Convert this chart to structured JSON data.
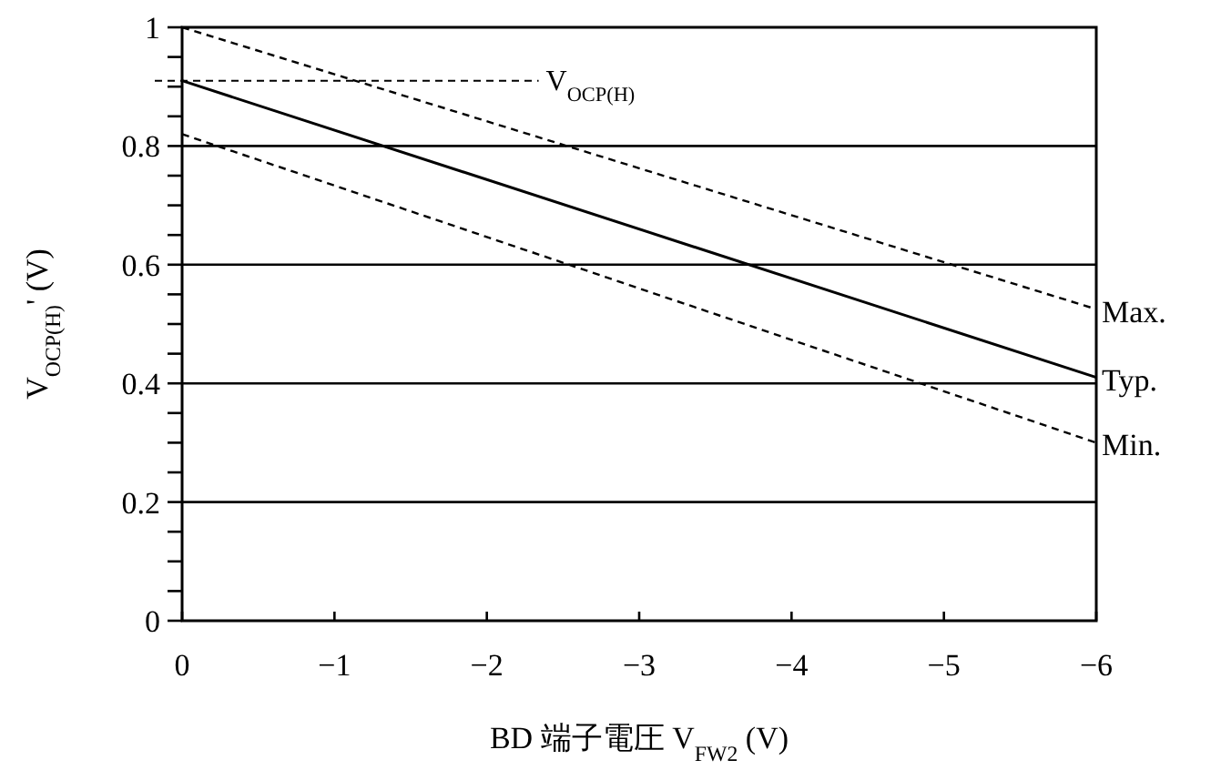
{
  "chart_data": {
    "type": "line",
    "xlabel": "BD 端子電圧  V$_{FW2}$ (V)",
    "ylabel": "V$_{OCP(H)}$' (V)",
    "x": [
      0,
      -6
    ],
    "series": [
      {
        "name": "Max.",
        "color": "#000000",
        "line_style": "dashed",
        "values": [
          1.0,
          0.525
        ]
      },
      {
        "name": "Typ.",
        "color": "#000000",
        "line_style": "solid",
        "values": [
          0.91,
          0.41
        ]
      },
      {
        "name": "Min.",
        "color": "#000000",
        "line_style": "dashed",
        "values": [
          0.82,
          0.3
        ]
      }
    ],
    "xlim": [
      0,
      -6
    ],
    "ylim": [
      0,
      1
    ],
    "xticks": [
      0,
      {
        "value": -1,
        "label": "−1"
      },
      {
        "value": -2,
        "label": "−2"
      },
      {
        "value": -3,
        "label": "−3"
      },
      {
        "value": -4,
        "label": "−4"
      },
      {
        "value": -5,
        "label": "−5"
      },
      {
        "value": -6,
        "label": "−6"
      }
    ],
    "yticks": [
      0,
      {
        "value": 0.05,
        "label": null
      },
      {
        "value": 0.1,
        "label": null
      },
      {
        "value": 0.15,
        "label": null
      },
      0.2,
      {
        "value": 0.25,
        "label": null
      },
      {
        "value": 0.3,
        "label": null
      },
      {
        "value": 0.35,
        "label": null
      },
      0.4,
      {
        "value": 0.45,
        "label": null
      },
      {
        "value": 0.5,
        "label": null
      },
      {
        "value": 0.55,
        "label": null
      },
      0.6,
      {
        "value": 0.65,
        "label": null
      },
      {
        "value": 0.7,
        "label": null
      },
      {
        "value": 0.75,
        "label": null
      },
      0.8,
      {
        "value": 0.85,
        "label": null
      },
      {
        "value": 0.9,
        "label": null
      },
      {
        "value": 0.95,
        "label": null
      },
      1
    ],
    "grid": "y",
    "ref_lines": [
      {
        "axis": "y",
        "value": 0.91,
        "label": "V$_{OCP(H)}$",
        "line_style": "dashed"
      }
    ]
  }
}
